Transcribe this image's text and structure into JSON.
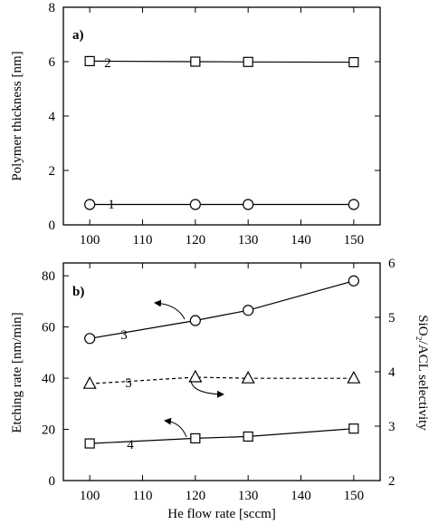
{
  "chart_data": [
    {
      "panel_label": "a)",
      "type": "line",
      "x": [
        100,
        120,
        130,
        150
      ],
      "xlim": [
        95,
        155
      ],
      "xticks": [
        100,
        110,
        120,
        130,
        140,
        150
      ],
      "xlabel": "",
      "ylabel": "Polymer thickness [nm]",
      "ylim": [
        0,
        8
      ],
      "yticks": [
        0,
        2,
        4,
        6,
        8
      ],
      "grid": false,
      "series": [
        {
          "label": "2",
          "marker": "square",
          "dash": false,
          "values": [
            6.02,
            6.0,
            5.99,
            5.98
          ]
        },
        {
          "label": "1",
          "marker": "circle",
          "dash": false,
          "values": [
            0.75,
            0.75,
            0.75,
            0.75
          ]
        }
      ]
    },
    {
      "panel_label": "b)",
      "type": "line",
      "x": [
        100,
        120,
        130,
        150
      ],
      "xlim": [
        95,
        155
      ],
      "xticks": [
        100,
        110,
        120,
        130,
        140,
        150
      ],
      "xlabel": "He flow rate [sccm]",
      "ylabel": "Etching rate [nm/min]",
      "ylim": [
        0,
        85
      ],
      "yticks": [
        0,
        20,
        40,
        60,
        80
      ],
      "y2label": "SiO₂/ACL selectivity",
      "y2lim": [
        2,
        6
      ],
      "y2ticks": [
        2,
        3,
        4,
        5,
        6
      ],
      "grid": false,
      "series": [
        {
          "label": "3",
          "marker": "circle",
          "dash": false,
          "axis": "left",
          "values": [
            55.5,
            62.5,
            66.5,
            78
          ]
        },
        {
          "label": "5",
          "marker": "triangle",
          "dash": true,
          "axis": "right",
          "values": [
            3.78,
            3.9,
            3.88,
            3.88
          ]
        },
        {
          "label": "4",
          "marker": "square",
          "dash": false,
          "axis": "left",
          "values": [
            14.5,
            16.5,
            17.2,
            20.3
          ]
        }
      ]
    }
  ]
}
